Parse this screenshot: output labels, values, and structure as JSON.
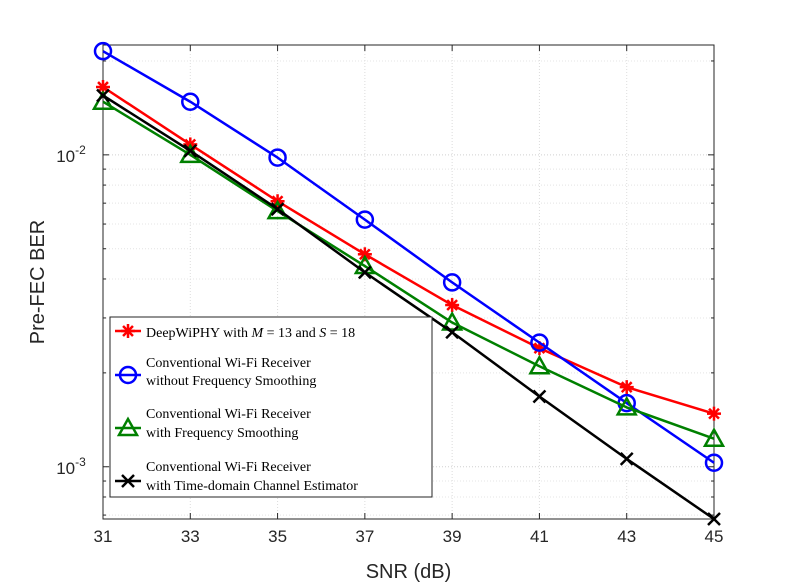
{
  "chart_data": {
    "type": "line",
    "title": "",
    "xlabel": "SNR (dB)",
    "ylabel": "Pre-FEC BER",
    "x": [
      31,
      33,
      35,
      37,
      39,
      41,
      43,
      45
    ],
    "xlim": [
      31,
      45
    ],
    "xticks": [
      "31",
      "33",
      "35",
      "37",
      "39",
      "41",
      "43",
      "45"
    ],
    "ylim": [
      0.00068,
      0.0225
    ],
    "yscale": "log",
    "yticks": [
      {
        "value": 0.01,
        "base": "10",
        "exp": "-2"
      },
      {
        "value": 0.001,
        "base": "10",
        "exp": "-3"
      }
    ],
    "grid": true,
    "legend_position": "bottom-left",
    "series": [
      {
        "name": "DeepWiPHY with M = 13 and S = 18",
        "legend": {
          "prefix": "DeepWiPHY with ",
          "m_sym": "M",
          "m_rest": " = 13 and ",
          "s_sym": "S",
          "s_rest": " = 18"
        },
        "color": "#ff0000",
        "marker": "asterisk",
        "values": [
          0.0165,
          0.0108,
          0.0071,
          0.0048,
          0.0033,
          0.0024,
          0.0018,
          0.00148
        ]
      },
      {
        "name": "Conventional Wi-Fi Receiver without Frequency Smoothing",
        "legend_lines": [
          "Conventional Wi-Fi Receiver",
          "without Frequency Smoothing"
        ],
        "color": "#0000ff",
        "marker": "circle",
        "values": [
          0.0215,
          0.0148,
          0.0098,
          0.0062,
          0.0039,
          0.0025,
          0.0016,
          0.00103
        ]
      },
      {
        "name": "Conventional Wi-Fi Receiver with Frequency Smoothing",
        "legend_lines": [
          "Conventional Wi-Fi Receiver",
          "with Frequency Smoothing"
        ],
        "color": "#008000",
        "marker": "triangle",
        "values": [
          0.0148,
          0.01,
          0.0066,
          0.0044,
          0.0029,
          0.0021,
          0.00155,
          0.00123
        ]
      },
      {
        "name": "Conventional Wi-Fi Receiver with Time-domain Channel Estimator",
        "legend_lines": [
          "Conventional Wi-Fi Receiver",
          "with Time-domain Channel Estimator"
        ],
        "color": "#000000",
        "marker": "x",
        "values": [
          0.0155,
          0.0103,
          0.0067,
          0.0042,
          0.0027,
          0.00168,
          0.00106,
          0.00068
        ]
      }
    ]
  }
}
